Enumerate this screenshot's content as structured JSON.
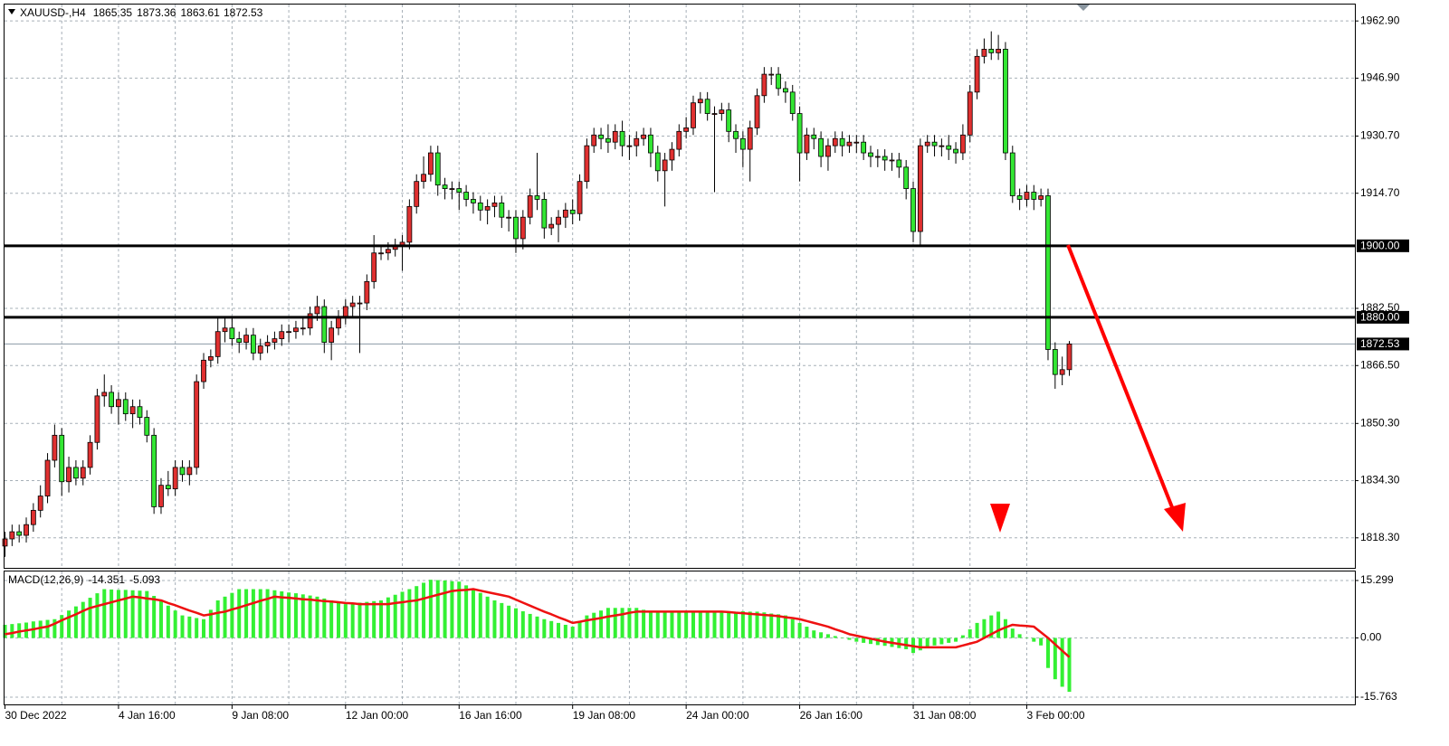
{
  "header": {
    "symbol": "XAUUSD-,H4"
  },
  "chart_data": [
    {
      "type": "candlestick",
      "categories": [
        "30 Dec 2022",
        null,
        null,
        null,
        null,
        null,
        null,
        null,
        null,
        null,
        null,
        null,
        null,
        null,
        null,
        null,
        "4 Jan 16:00",
        null,
        null,
        null,
        null,
        null,
        null,
        null,
        null,
        null,
        null,
        null,
        null,
        null,
        null,
        null,
        "9 Jan 08:00",
        null,
        null,
        null,
        null,
        null,
        null,
        null,
        null,
        null,
        null,
        null,
        null,
        null,
        null,
        null,
        "12 Jan 00:00",
        null,
        null,
        null,
        null,
        null,
        null,
        null,
        null,
        null,
        null,
        null,
        null,
        null,
        null,
        null,
        "16 Jan 16:00",
        null,
        null,
        null,
        null,
        null,
        null,
        null,
        null,
        null,
        null,
        null,
        null,
        null,
        null,
        null,
        "19 Jan 08:00",
        null,
        null,
        null,
        null,
        null,
        null,
        null,
        null,
        null,
        null,
        null,
        null,
        null,
        null,
        null,
        "24 Jan 00:00",
        null,
        null,
        null,
        null,
        null,
        null,
        null,
        null,
        null,
        null,
        null,
        null,
        null,
        null,
        null,
        "26 Jan 16:00",
        null,
        null,
        null,
        null,
        null,
        null,
        null,
        null,
        null,
        null,
        null,
        null,
        null,
        null,
        null,
        "31 Jan 08:00",
        null,
        null,
        null,
        null,
        null,
        null,
        null,
        null,
        null,
        null,
        null,
        null,
        null,
        null,
        null,
        "3 Feb 00:00",
        null,
        null,
        null,
        null,
        null,
        null
      ],
      "open": [
        1816,
        1818,
        1820,
        1819,
        1822,
        1826,
        1830,
        1840,
        1847,
        1834,
        1838,
        1835,
        1838,
        1845,
        1858,
        1859,
        1855,
        1857,
        1853,
        1855,
        1852,
        1847,
        1827,
        1833,
        1832,
        1838,
        1836,
        1838,
        1862,
        1868,
        1869,
        1876,
        1877,
        1874,
        1873,
        1875,
        1870,
        1872,
        1873,
        1874,
        1876,
        1876,
        1877,
        1877,
        1881,
        1883,
        1873,
        1877,
        1880,
        1883,
        1884,
        1884,
        1890,
        1898,
        1898,
        1899,
        1900,
        1901,
        1911,
        1918,
        1920,
        1926,
        1917,
        1916,
        1916,
        1915,
        1913,
        1912,
        1910,
        1911,
        1912,
        1908,
        1908,
        1902,
        1908,
        1914,
        1913,
        1905,
        1906,
        1908,
        1910,
        1909,
        1918,
        1928,
        1931,
        1930,
        1929,
        1932,
        1928,
        1928,
        1930,
        1931,
        1926,
        1921,
        1924,
        1927,
        1932,
        1933,
        1940,
        1941,
        1937,
        1937,
        1938,
        1932,
        1930,
        1927,
        1933,
        1942,
        1948,
        1948,
        1944,
        1943,
        1937,
        1926,
        1931,
        1930,
        1925,
        1928,
        1930,
        1928,
        1929,
        1929,
        1926,
        1925,
        1925,
        1924,
        1924,
        1922,
        1916,
        1904,
        1928,
        1929,
        1928,
        1928,
        1927,
        1926,
        1931,
        1943,
        1953,
        1955,
        1954,
        1955,
        1926,
        1914,
        1913,
        1915,
        1913,
        1914,
        1871,
        1864,
        1865.35
      ],
      "high": [
        1820,
        1822,
        1822,
        1824,
        1828,
        1833,
        1842,
        1850,
        1849,
        1841,
        1840,
        1840,
        1847,
        1860,
        1864,
        1861,
        1859,
        1859,
        1857,
        1857,
        1854,
        1849,
        1835,
        1837,
        1840,
        1840,
        1840,
        1864,
        1870,
        1871,
        1880,
        1880,
        1880,
        1876,
        1877,
        1877,
        1874,
        1875,
        1876,
        1878,
        1878,
        1879,
        1880,
        1883,
        1886,
        1885,
        1879,
        1882,
        1885,
        1886,
        1886,
        1892,
        1903,
        1900,
        1901,
        1902,
        1903,
        1913,
        1920,
        1925,
        1928,
        1928,
        1919,
        1918,
        1918,
        1917,
        1915,
        1914,
        1913,
        1914,
        1914,
        1910,
        1910,
        1910,
        1916,
        1926,
        1915,
        1908,
        1910,
        1912,
        1913,
        1920,
        1930,
        1933,
        1933,
        1934,
        1934,
        1935,
        1931,
        1932,
        1933,
        1933,
        1928,
        1926,
        1929,
        1934,
        1936,
        1942,
        1943,
        1943,
        1939,
        1940,
        1940,
        1934,
        1932,
        1935,
        1944,
        1950,
        1950,
        1950,
        1946,
        1945,
        1939,
        1933,
        1933,
        1932,
        1930,
        1932,
        1932,
        1931,
        1931,
        1931,
        1928,
        1927,
        1927,
        1926,
        1926,
        1924,
        1918,
        1930,
        1931,
        1931,
        1930,
        1931,
        1929,
        1934,
        1945,
        1955,
        1958,
        1960,
        1959,
        1957,
        1928,
        1916,
        1917,
        1917,
        1916,
        1916,
        1873,
        1869,
        1873.36
      ],
      "low": [
        1813,
        1816,
        1817,
        1817,
        1820,
        1824,
        1828,
        1838,
        1830,
        1831,
        1833,
        1833,
        1836,
        1843,
        1855,
        1853,
        1850,
        1851,
        1849,
        1850,
        1845,
        1825,
        1825,
        1830,
        1830,
        1834,
        1833,
        1836,
        1860,
        1866,
        1867,
        1873,
        1872,
        1870,
        1871,
        1868,
        1868,
        1870,
        1871,
        1872,
        1873,
        1874,
        1875,
        1875,
        1879,
        1870,
        1868,
        1875,
        1878,
        1880,
        1870,
        1882,
        1888,
        1896,
        1896,
        1897,
        1893,
        1899,
        1909,
        1916,
        1918,
        1914,
        1913,
        1913,
        1910,
        1911,
        1909,
        1907,
        1906,
        1908,
        1905,
        1904,
        1898,
        1899,
        1906,
        1910,
        1902,
        1903,
        1901,
        1905,
        1906,
        1907,
        1916,
        1926,
        1927,
        1926,
        1927,
        1925,
        1924,
        1925,
        1928,
        1922,
        1918,
        1911,
        1921,
        1925,
        1930,
        1931,
        1937,
        1935,
        1915,
        1935,
        1929,
        1926,
        1922,
        1918,
        1931,
        1940,
        1945,
        1942,
        1940,
        1935,
        1918,
        1924,
        1927,
        1922,
        1921,
        1926,
        1925,
        1926,
        1926,
        1924,
        1922,
        1922,
        1921,
        1921,
        1919,
        1913,
        1901,
        1900,
        1926,
        1925,
        1925,
        1924,
        1923,
        1924,
        1929,
        1941,
        1951,
        1952,
        1952,
        1924,
        1912,
        1910,
        1911,
        1910,
        1911,
        1868,
        1860,
        1861,
        1863.61
      ],
      "close": [
        1818,
        1820,
        1819,
        1822,
        1826,
        1830,
        1840,
        1847,
        1834,
        1838,
        1835,
        1838,
        1845,
        1858,
        1859,
        1855,
        1857,
        1853,
        1855,
        1852,
        1847,
        1827,
        1833,
        1832,
        1838,
        1836,
        1838,
        1862,
        1868,
        1869,
        1876,
        1877,
        1874,
        1873,
        1875,
        1870,
        1872,
        1873,
        1874,
        1876,
        1876,
        1877,
        1877,
        1881,
        1883,
        1873,
        1877,
        1880,
        1883,
        1884,
        1884,
        1890,
        1898,
        1898,
        1899,
        1900,
        1901,
        1911,
        1918,
        1920,
        1926,
        1917,
        1916,
        1916,
        1915,
        1913,
        1912,
        1910,
        1911,
        1912,
        1908,
        1908,
        1902,
        1908,
        1914,
        1913,
        1905,
        1906,
        1908,
        1910,
        1909,
        1918,
        1928,
        1931,
        1930,
        1929,
        1932,
        1928,
        1928,
        1930,
        1931,
        1926,
        1921,
        1924,
        1927,
        1932,
        1933,
        1940,
        1941,
        1937,
        1937,
        1938,
        1932,
        1930,
        1927,
        1933,
        1942,
        1948,
        1948,
        1944,
        1943,
        1937,
        1926,
        1931,
        1930,
        1925,
        1928,
        1930,
        1928,
        1929,
        1929,
        1926,
        1925,
        1925,
        1924,
        1924,
        1922,
        1916,
        1904,
        1928,
        1929,
        1928,
        1928,
        1927,
        1926,
        1931,
        1943,
        1953,
        1955,
        1954,
        1955,
        1926,
        1914,
        1913,
        1915,
        1913,
        1914,
        1871,
        1864,
        1865.35,
        1872.53
      ],
      "up_color": "#e03030",
      "down_color": "#33e633",
      "ylim": [
        1809.9,
        1967.5
      ],
      "yticks": [
        {
          "value": 1962.9,
          "label": "1962.90"
        },
        {
          "value": 1946.9,
          "label": "1946.90"
        },
        {
          "value": 1930.7,
          "label": "1930.70"
        },
        {
          "value": 1914.7,
          "label": "1914.70"
        },
        {
          "value": 1882.5,
          "label": "1882.50"
        },
        {
          "value": 1866.5,
          "label": "1866.50"
        },
        {
          "value": 1850.3,
          "label": "1850.30"
        },
        {
          "value": 1834.3,
          "label": "1834.30"
        },
        {
          "value": 1818.3,
          "label": "1818.30"
        }
      ],
      "levels": [
        {
          "value": 1900,
          "label": "1900.00"
        },
        {
          "value": 1880,
          "label": "1880.00"
        }
      ],
      "grid": true
    },
    {
      "type": "macd",
      "title": "MACD(12,26,9)",
      "series": [
        {
          "color": "#33f033",
          "values": [
            3.5,
            3.7,
            3.9,
            4.1,
            4.4,
            4.6,
            4.8,
            5.0,
            6.1,
            7.3,
            8.4,
            9.6,
            10.7,
            11.9,
            13.0,
            12.9,
            12.8,
            12.8,
            12.7,
            12.6,
            12.5,
            11.2,
            9.9,
            8.6,
            7.3,
            6.0,
            5.7,
            5.3,
            5.0,
            7.5,
            10.0,
            11.0,
            12.0,
            13.0,
            13.0,
            13.0,
            13.0,
            13.0,
            12.7,
            12.4,
            12.1,
            11.9,
            11.6,
            11.3,
            11.0,
            10.5,
            10.0,
            9.5,
            9.0,
            9.2,
            9.4,
            9.6,
            9.8,
            10.0,
            10.8,
            11.5,
            12.3,
            13.0,
            13.8,
            14.7,
            15.5,
            15.4,
            15.3,
            15.1,
            15.0,
            14.0,
            13.0,
            12.0,
            11.0,
            10.0,
            9.3,
            8.6,
            7.9,
            7.1,
            6.4,
            5.7,
            5.0,
            4.5,
            4.0,
            3.5,
            3.0,
            4.5,
            6.0,
            6.7,
            7.3,
            8.0,
            8.0,
            8.0,
            8.0,
            8.0,
            7.5,
            7.0,
            7.1,
            7.2,
            7.0,
            6.9,
            7.1,
            7.2,
            7.0,
            7.0,
            7.1,
            7.0,
            6.9,
            7.0,
            7.1,
            7.0,
            7.0,
            6.8,
            6.5,
            6.3,
            6.0,
            5.0,
            4.0,
            3.0,
            2.0,
            1.5,
            1.0,
            0.5,
            0.0,
            -0.5,
            -1.0,
            -1.3,
            -1.6,
            -1.9,
            -2.1,
            -2.4,
            -2.7,
            -3.0,
            -4.0,
            -3.3,
            -2.7,
            -2.0,
            -1.7,
            -1.3,
            -1.0,
            0.7,
            2.3,
            4.0,
            5.0,
            6.0,
            7.0,
            5.0,
            2.5,
            1.0,
            0.0,
            -1.0,
            -2.0,
            -8.0,
            -11.0,
            -13.0,
            -14.351
          ]
        },
        {
          "color": "#ee1111",
          "values": [
            1.0,
            1.3,
            1.7,
            2.0,
            2.3,
            2.7,
            3.0,
            3.8,
            4.7,
            5.5,
            6.3,
            7.2,
            8.0,
            8.5,
            9.0,
            9.5,
            10.0,
            10.5,
            11.0,
            10.8,
            10.5,
            10.3,
            10.0,
            9.3,
            8.7,
            8.0,
            7.3,
            6.7,
            6.0,
            6.3,
            6.7,
            7.0,
            7.6,
            8.1,
            8.7,
            9.3,
            9.9,
            10.4,
            11.0,
            10.8,
            10.7,
            10.5,
            10.3,
            10.2,
            10.0,
            9.8,
            9.7,
            9.5,
            9.3,
            9.2,
            9.0,
            9.0,
            9.0,
            9.0,
            9.0,
            9.3,
            9.5,
            9.8,
            10.0,
            10.5,
            11.0,
            11.5,
            12.0,
            12.5,
            12.7,
            12.8,
            13.0,
            12.6,
            12.2,
            11.8,
            11.4,
            11.0,
            10.2,
            9.4,
            8.6,
            7.8,
            7.0,
            6.3,
            5.5,
            4.8,
            4.0,
            4.3,
            4.7,
            5.0,
            5.3,
            5.7,
            6.0,
            6.3,
            6.7,
            7.0,
            7.0,
            7.0,
            7.0,
            7.0,
            7.0,
            7.0,
            7.0,
            7.0,
            7.0,
            7.0,
            7.0,
            7.0,
            6.9,
            6.7,
            6.6,
            6.4,
            6.3,
            6.1,
            6.0,
            5.8,
            5.5,
            5.3,
            5.0,
            4.5,
            4.0,
            3.5,
            3.0,
            2.3,
            1.7,
            1.0,
            0.6,
            0.2,
            -0.2,
            -0.6,
            -1.0,
            -1.3,
            -1.6,
            -1.9,
            -2.2,
            -2.5,
            -2.5,
            -2.5,
            -2.5,
            -2.5,
            -2.5,
            -2.0,
            -1.5,
            -1.0,
            0.0,
            1.0,
            2.0,
            2.8,
            3.5,
            3.3,
            3.2,
            3.0,
            1.5,
            0.0,
            -1.7,
            -3.4,
            -5.093
          ]
        }
      ],
      "ylim": [
        -17.7,
        17.7
      ],
      "yticks": [
        15.299,
        {
          "value": 0,
          "label": "0.00"
        },
        -15.763
      ]
    }
  ]
}
